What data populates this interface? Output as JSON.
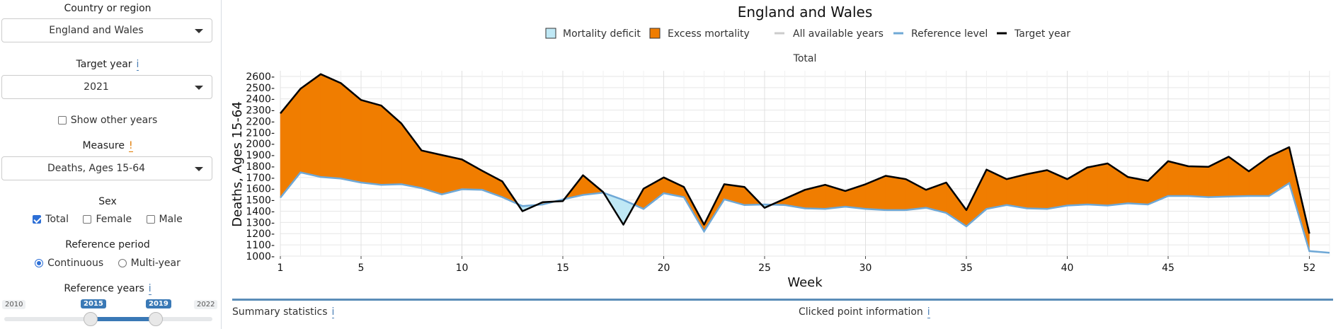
{
  "sidebar": {
    "country_label": "Country or region",
    "country_value": "England and Wales",
    "target_year_label": "Target year",
    "target_year_info": "i",
    "target_year_value": "2021",
    "show_other_years_label": "Show other years",
    "measure_label": "Measure",
    "measure_warn": "!",
    "measure_value": "Deaths, Ages 15-64",
    "sex_label": "Sex",
    "sex_options": [
      "Total",
      "Female",
      "Male"
    ],
    "sex_checked": [
      "Total"
    ],
    "reference_period_label": "Reference period",
    "reference_period_options": [
      "Continuous",
      "Multi-year"
    ],
    "reference_period_selected": "Continuous",
    "reference_years_label": "Reference years",
    "reference_years_info": "i",
    "slider_min": "2010",
    "slider_max": "2022",
    "slider_from": "2015",
    "slider_to": "2019"
  },
  "bottom": {
    "summary_label": "Summary statistics",
    "summary_info": "i",
    "clicked_label": "Clicked point information",
    "clicked_info": "i"
  },
  "chart_data": {
    "type": "area",
    "title": "England and Wales",
    "subtitle": "Total",
    "xlabel": "Week",
    "ylabel": "Deaths, Ages 15-64",
    "xlim": [
      1,
      53
    ],
    "ylim": [
      1000,
      2650
    ],
    "x_ticks": [
      1,
      5,
      10,
      15,
      20,
      25,
      30,
      35,
      40,
      45,
      52
    ],
    "y_ticks": [
      1000,
      1100,
      1200,
      1300,
      1400,
      1500,
      1600,
      1700,
      1800,
      1900,
      2000,
      2100,
      2200,
      2300,
      2400,
      2500,
      2600
    ],
    "grid": true,
    "legend_position": "top",
    "legend": [
      {
        "name": "Mortality deficit",
        "kind": "fill",
        "color": "#bfe8f5"
      },
      {
        "name": "Excess mortality",
        "kind": "fill",
        "color": "#f07d00"
      },
      {
        "name": "All available years",
        "kind": "line",
        "color": "#cccccc"
      },
      {
        "name": "Reference level",
        "kind": "line",
        "color": "#6fa8d6"
      },
      {
        "name": "Target year",
        "kind": "line",
        "color": "#000000"
      }
    ],
    "series": [
      {
        "name": "Target year",
        "x": [
          1,
          2,
          3,
          4,
          5,
          6,
          7,
          8,
          9,
          10,
          11,
          12,
          13,
          14,
          15,
          16,
          17,
          18,
          19,
          20,
          21,
          22,
          23,
          24,
          25,
          26,
          27,
          28,
          29,
          30,
          31,
          32,
          33,
          34,
          35,
          36,
          37,
          38,
          39,
          40,
          41,
          42,
          43,
          44,
          45,
          46,
          47,
          48,
          49,
          50,
          51,
          52
        ],
        "values": [
          2270,
          2490,
          2620,
          2540,
          2390,
          2340,
          2180,
          1940,
          1900,
          1860,
          1760,
          1665,
          1400,
          1480,
          1490,
          1720,
          1570,
          1280,
          1600,
          1700,
          1615,
          1280,
          1640,
          1615,
          1430,
          1510,
          1590,
          1635,
          1580,
          1640,
          1715,
          1685,
          1590,
          1655,
          1410,
          1770,
          1685,
          1730,
          1765,
          1685,
          1790,
          1825,
          1705,
          1670,
          1845,
          1800,
          1795,
          1885,
          1755,
          1885,
          1970,
          1200
        ]
      },
      {
        "name": "Reference level",
        "x": [
          1,
          2,
          3,
          4,
          5,
          6,
          7,
          8,
          9,
          10,
          11,
          12,
          13,
          14,
          15,
          16,
          17,
          18,
          19,
          20,
          21,
          22,
          23,
          24,
          25,
          26,
          27,
          28,
          29,
          30,
          31,
          32,
          33,
          34,
          35,
          36,
          37,
          38,
          39,
          40,
          41,
          42,
          43,
          44,
          45,
          46,
          47,
          48,
          49,
          50,
          51,
          52,
          53
        ],
        "values": [
          1520,
          1745,
          1705,
          1690,
          1655,
          1635,
          1640,
          1605,
          1550,
          1595,
          1590,
          1525,
          1445,
          1460,
          1505,
          1545,
          1565,
          1500,
          1420,
          1560,
          1525,
          1220,
          1505,
          1455,
          1460,
          1455,
          1425,
          1420,
          1440,
          1420,
          1410,
          1410,
          1430,
          1385,
          1265,
          1420,
          1455,
          1425,
          1420,
          1450,
          1460,
          1450,
          1470,
          1460,
          1535,
          1535,
          1525,
          1530,
          1535,
          1535,
          1650,
          1045,
          1030
        ]
      }
    ]
  }
}
